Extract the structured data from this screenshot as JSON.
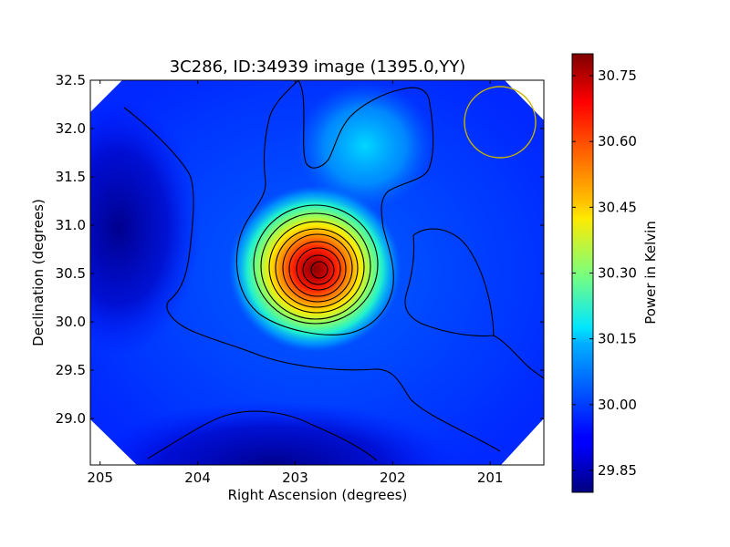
{
  "chart_data": {
    "type": "heatmap",
    "title": "3C286, ID:34939 image (1395.0,YY)",
    "xlabel": "Right Ascension (degrees)",
    "ylabel": "Declination (degrees)",
    "xlim": [
      205.1,
      200.45
    ],
    "ylim": [
      28.52,
      32.5
    ],
    "x_ticks": [
      205,
      204,
      203,
      202,
      201
    ],
    "x_tick_labels": [
      "205",
      "204",
      "203",
      "202",
      "201"
    ],
    "y_ticks": [
      29.0,
      29.5,
      30.0,
      30.5,
      31.0,
      31.5,
      32.0,
      32.5
    ],
    "y_tick_labels": [
      "29.0",
      "29.5",
      "30.0",
      "30.5",
      "31.0",
      "31.5",
      "32.0",
      "32.5"
    ],
    "colorbar": {
      "label": "Power in Kelvin",
      "colormap": "jet",
      "range": [
        29.8,
        30.8
      ],
      "ticks": [
        29.85,
        30.0,
        30.15,
        30.3,
        30.45,
        30.6,
        30.75
      ],
      "tick_labels": [
        "29.85",
        "30.00",
        "30.15",
        "30.30",
        "30.45",
        "30.60",
        "30.75"
      ]
    },
    "peak": {
      "ra": 202.75,
      "dec": 30.53,
      "value": 30.79
    },
    "secondary_peak": {
      "ra": 202.2,
      "dec": 31.8,
      "value": 30.1
    },
    "minimum": {
      "ra": 203.2,
      "dec": 28.6,
      "value": 29.82
    },
    "contour_color": "#000000",
    "beam_circle": {
      "color": "#c8b400"
    }
  }
}
